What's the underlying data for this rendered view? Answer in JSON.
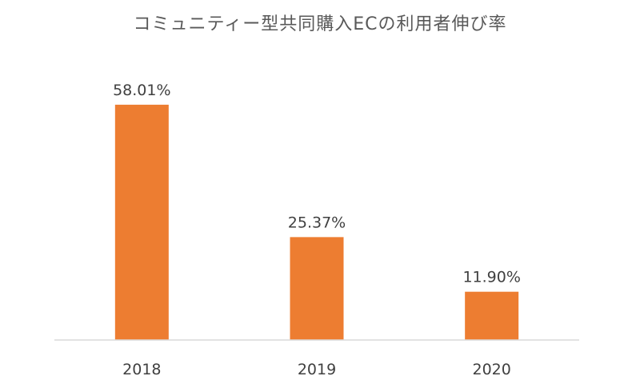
{
  "chart_data": {
    "type": "bar",
    "title": "コミュニティー型共同購入ECの利用者伸び率",
    "categories": [
      "2018",
      "2019",
      "2020"
    ],
    "values": [
      58.01,
      25.37,
      11.9
    ],
    "value_labels": [
      "58.01%",
      "25.37%",
      "11.90%"
    ],
    "ylim": [
      0,
      60
    ],
    "grid": false,
    "legend": "none",
    "bar_color": "#ED7D31",
    "axis_color": "#D9D9D9"
  }
}
